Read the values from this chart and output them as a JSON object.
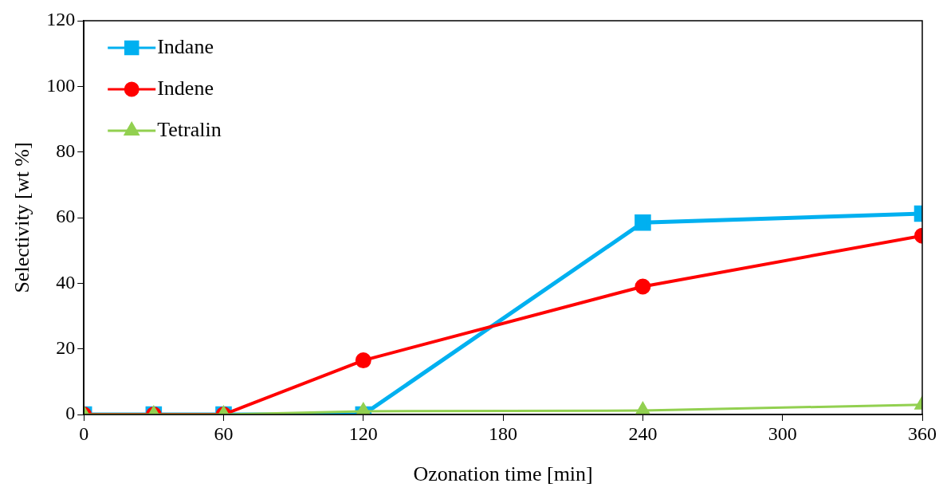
{
  "chart_data": {
    "type": "line",
    "xlabel": "Ozonation time [min]",
    "ylabel": "Selectivity [wt %]",
    "x": [
      0,
      30,
      60,
      120,
      240,
      360
    ],
    "series": [
      {
        "name": "Indane",
        "color": "#00b0f0",
        "marker": "square",
        "values": [
          0,
          0,
          0,
          0,
          58.5,
          61.2
        ]
      },
      {
        "name": "Indene",
        "color": "#ff0000",
        "marker": "circle",
        "values": [
          0,
          0,
          0,
          16.5,
          39,
          54.5
        ]
      },
      {
        "name": "Tetralin",
        "color": "#92d050",
        "marker": "triangle",
        "values": [
          0,
          0,
          0,
          1,
          1.2,
          3
        ]
      }
    ],
    "xlim": [
      0,
      360
    ],
    "xticks": [
      0,
      60,
      120,
      180,
      240,
      300,
      360
    ],
    "ylim": [
      0,
      120
    ],
    "yticks": [
      0,
      20,
      40,
      60,
      80,
      100,
      120
    ],
    "grid": false,
    "legend": "top left",
    "line_style": "solid"
  }
}
